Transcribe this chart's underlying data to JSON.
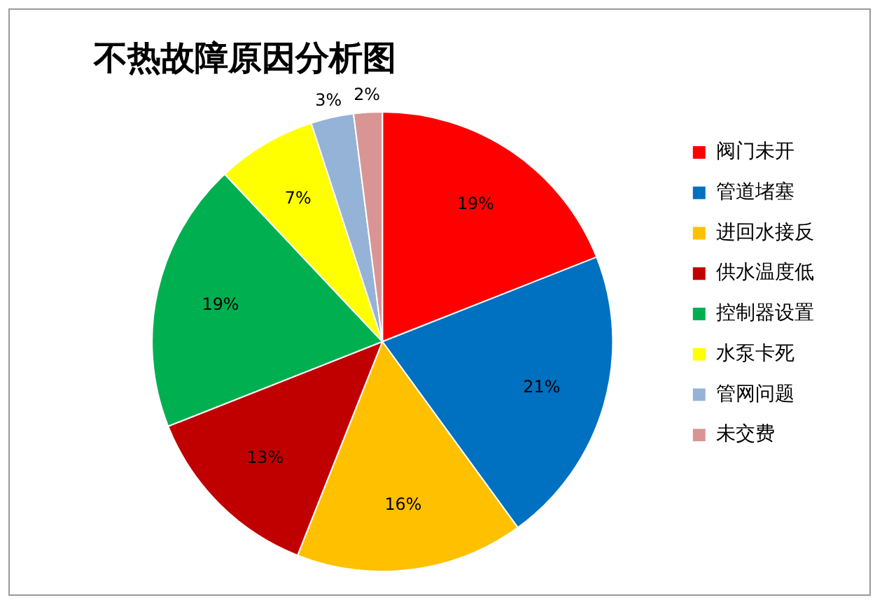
{
  "chart_data": {
    "type": "pie",
    "title": "不热故障原因分析图",
    "categories": [
      "阀门未开",
      "管道堵塞",
      "进回水接反",
      "供水温度低",
      "控制器设置",
      "水泵卡死",
      "管网问题",
      "未交费"
    ],
    "values": [
      19,
      21,
      16,
      13,
      19,
      7,
      3,
      2
    ],
    "value_labels": [
      "19%",
      "21%",
      "16%",
      "13%",
      "19%",
      "7%",
      "3%",
      "2%"
    ],
    "colors": [
      "#ff0000",
      "#0070c0",
      "#ffc000",
      "#c00000",
      "#00b050",
      "#ffff00",
      "#95b3d7",
      "#d99594"
    ],
    "legend": "right"
  }
}
